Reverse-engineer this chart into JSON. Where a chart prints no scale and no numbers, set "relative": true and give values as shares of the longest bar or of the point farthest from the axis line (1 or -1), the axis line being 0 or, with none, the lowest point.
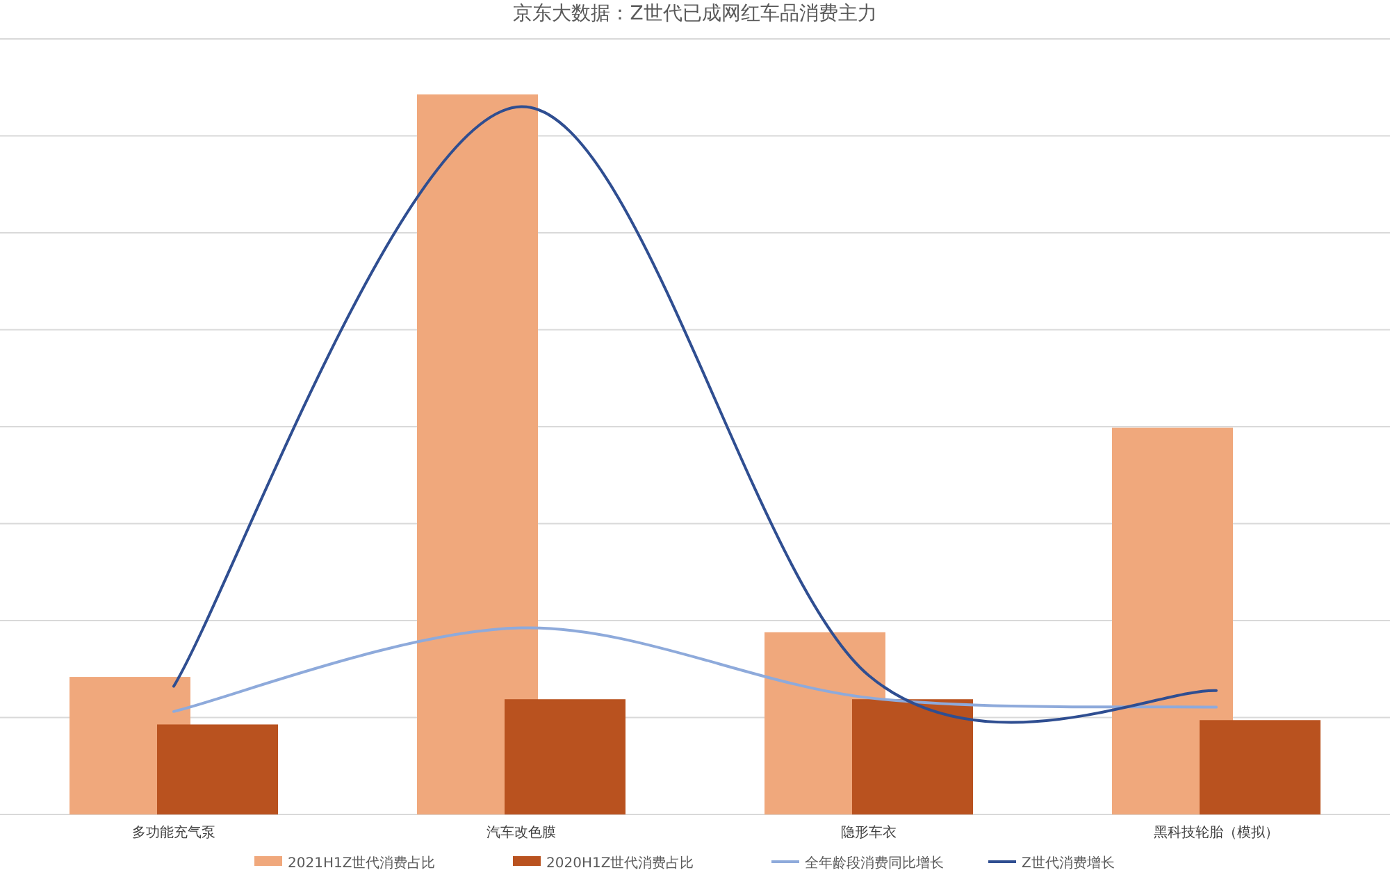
{
  "chart_data": {
    "type": "bar",
    "title": "京东大数据：Z世代已成网红车品消费主力",
    "categories": [
      "多功能充气泵",
      "汽车改色膜",
      "隐形车衣",
      "黑科技轮胎（模拟）"
    ],
    "relative": true,
    "grid": "y",
    "legend": "bottom",
    "series": [
      {
        "name": "2021H1Z世代消费占比",
        "color": "#f0a87c",
        "values": [
          0.191,
          1,
          0.253,
          0.537
        ]
      },
      {
        "name": "2020H1Z世代消费占比",
        "color": "#b9521f",
        "values": [
          0.125,
          0.16,
          0.16,
          0.131
        ]
      },
      {
        "name": "全年龄段消费同比增长",
        "type": "line",
        "color": "#8eaadb",
        "values": [
          0.143,
          0.259,
          0.162,
          0.149
        ]
      },
      {
        "name": "Z世代消费增长",
        "type": "line",
        "color": "#2f4e91",
        "values": [
          0.178,
          0.983,
          0.193,
          0.172
        ]
      }
    ]
  }
}
